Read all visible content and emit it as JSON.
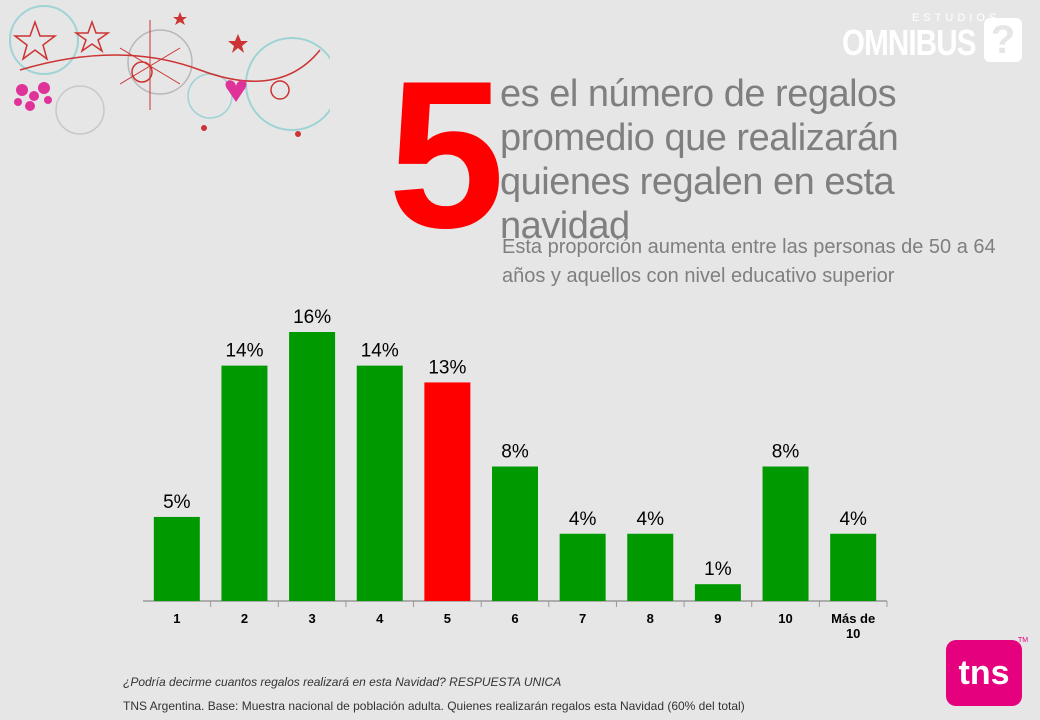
{
  "logo": {
    "studios_label": "ESTUDIOS",
    "brand_label": "OMNIBUS",
    "mark_label": "?"
  },
  "headline": {
    "number": "5",
    "text": "es el número de regalos promedio que realizarán quienes regalen en esta navidad",
    "subtext": "Esta proporción aumenta entre las personas de 50 a 64 años y aquellos con nivel educativo superior"
  },
  "chart_data": {
    "type": "bar",
    "categories": [
      "1",
      "2",
      "3",
      "4",
      "5",
      "6",
      "7",
      "8",
      "9",
      "10",
      "Más de 10"
    ],
    "values": [
      5,
      14,
      16,
      14,
      13,
      8,
      4,
      4,
      1,
      8,
      4
    ],
    "data_labels": [
      "5%",
      "14%",
      "16%",
      "14%",
      "13%",
      "8%",
      "4%",
      "4%",
      "1%",
      "8%",
      "4%"
    ],
    "unit": "%",
    "colors": {
      "default": "#009900",
      "highlight": "#ff0000"
    },
    "highlight_category": "5",
    "title": "",
    "xlabel": "",
    "ylabel": "",
    "ylim": [
      0,
      16
    ],
    "grid": false,
    "legend": "none"
  },
  "footer": {
    "question": "¿Podría decirme cuantos regalos realizará en esta Navidad? RESPUESTA UNICA",
    "base": "TNS Argentina. Base: Muestra nacional de población adulta. Quienes realizarán regalos esta Navidad (60% del total)",
    "tns_label": "tns",
    "tm": "TM"
  }
}
